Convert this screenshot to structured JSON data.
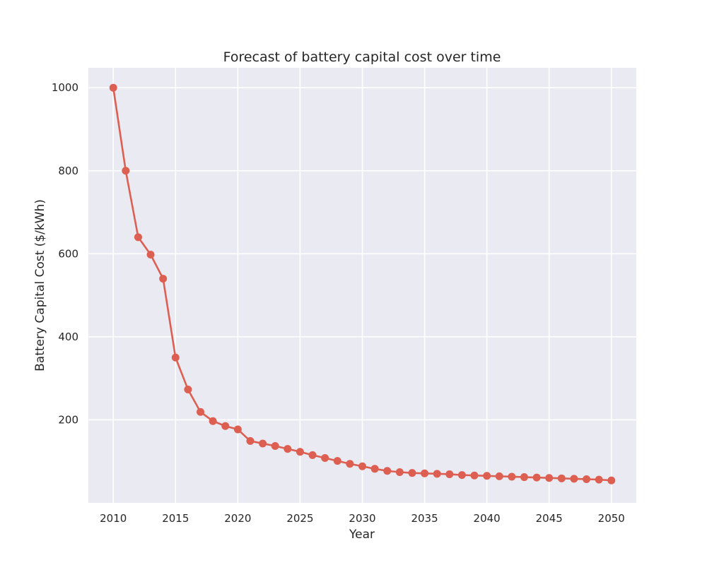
{
  "chart_data": {
    "type": "line",
    "title": "Forecast of battery capital cost over time",
    "xlabel": "Year",
    "ylabel": "Battery Capital Cost ($/kWh)",
    "xlim": [
      2008,
      2052
    ],
    "ylim": [
      0,
      1048
    ],
    "x_ticks": [
      2010,
      2015,
      2020,
      2025,
      2030,
      2035,
      2040,
      2045,
      2050
    ],
    "y_ticks": [
      200,
      400,
      600,
      800,
      1000
    ],
    "grid": true,
    "colors": {
      "line": "#dd5f52",
      "plot_bg": "#eaeaf2",
      "grid": "#ffffff",
      "text": "#262626"
    },
    "series": [
      {
        "x": [
          2010,
          2011,
          2012,
          2013,
          2014,
          2015,
          2016,
          2017,
          2018,
          2019,
          2020,
          2021,
          2022,
          2023,
          2024,
          2025,
          2026,
          2027,
          2028,
          2029,
          2030,
          2031,
          2032,
          2033,
          2034,
          2035,
          2036,
          2037,
          2038,
          2039,
          2040,
          2041,
          2042,
          2043,
          2044,
          2045,
          2046,
          2047,
          2048,
          2049,
          2050
        ],
        "y": [
          1000,
          800,
          640,
          598,
          540,
          350,
          273,
          219,
          197,
          185,
          177,
          149,
          143,
          137,
          130,
          123,
          115,
          108,
          101,
          94,
          88,
          82,
          77,
          74,
          72,
          71,
          70,
          69,
          67,
          66,
          65,
          64,
          63,
          62,
          61,
          60,
          59,
          58,
          57,
          56,
          54
        ]
      }
    ]
  }
}
